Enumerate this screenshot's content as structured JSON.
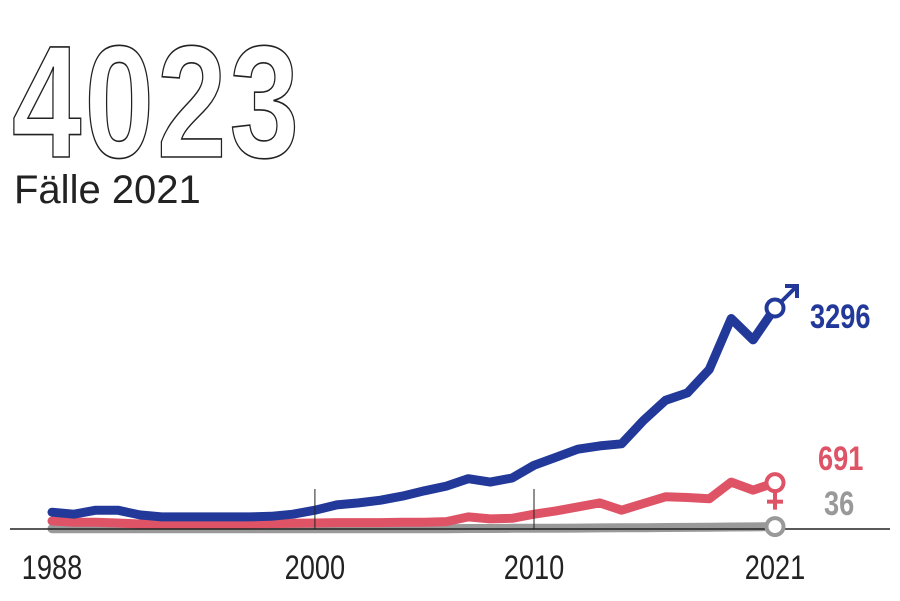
{
  "headline": {
    "value": "4023",
    "caption": "Fälle 2021"
  },
  "chart_data": {
    "type": "line",
    "x": [
      1988,
      1989,
      1990,
      1991,
      1992,
      1993,
      1994,
      1995,
      1996,
      1997,
      1998,
      1999,
      2000,
      2001,
      2002,
      2003,
      2004,
      2005,
      2006,
      2007,
      2008,
      2009,
      2010,
      2011,
      2012,
      2013,
      2014,
      2015,
      2016,
      2017,
      2018,
      2019,
      2020,
      2021
    ],
    "xticks": [
      "1988",
      "2000",
      "2010",
      "2021"
    ],
    "xlim": [
      1988,
      2021
    ],
    "ylim": [
      0,
      3300
    ],
    "grid": false,
    "series": [
      {
        "symbol": "male",
        "color": "#23399a",
        "end_label": "3296",
        "values": [
          250,
          220,
          280,
          280,
          210,
          180,
          180,
          180,
          180,
          180,
          190,
          220,
          280,
          360,
          390,
          430,
          490,
          570,
          640,
          750,
          700,
          760,
          950,
          1070,
          1190,
          1240,
          1270,
          1620,
          1920,
          2030,
          2380,
          3140,
          2820,
          3296
        ]
      },
      {
        "symbol": "female",
        "color": "#de5466",
        "end_label": "691",
        "values": [
          120,
          100,
          100,
          90,
          75,
          75,
          75,
          75,
          75,
          75,
          80,
          85,
          90,
          95,
          95,
          95,
          100,
          100,
          110,
          180,
          150,
          160,
          220,
          270,
          330,
          390,
          280,
          380,
          480,
          470,
          450,
          700,
          580,
          691
        ]
      },
      {
        "symbol": "other",
        "color": "#999999",
        "end_label": "36",
        "values": [
          5,
          5,
          5,
          5,
          5,
          5,
          5,
          5,
          5,
          5,
          5,
          5,
          5,
          5,
          5,
          5,
          5,
          5,
          5,
          8,
          8,
          10,
          10,
          12,
          14,
          16,
          18,
          20,
          22,
          24,
          26,
          30,
          32,
          36
        ]
      }
    ]
  }
}
